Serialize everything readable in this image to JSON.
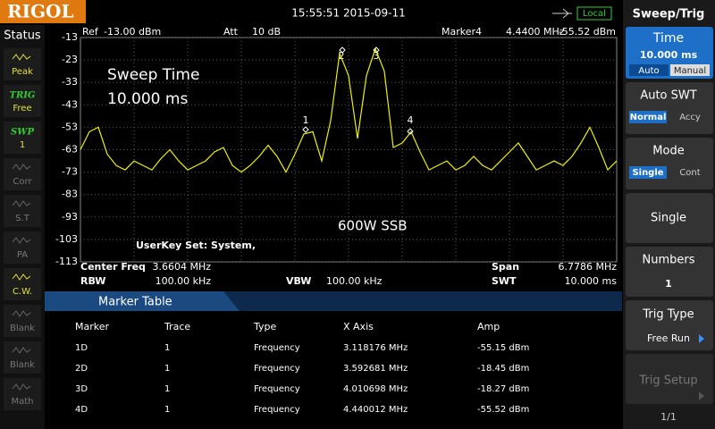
{
  "header": {
    "logo": "RIGOL",
    "datetime": "15:55:51 2015-09-11",
    "mode": "Local"
  },
  "status": {
    "title": "Status",
    "items": [
      [
        "Peak"
      ],
      [
        "TRIG",
        "Free"
      ],
      [
        "SWP",
        "1"
      ],
      [
        "Corr"
      ],
      [
        "S.T"
      ],
      [
        "PA"
      ],
      [
        "C.W."
      ],
      [
        "Blank"
      ],
      [
        "Blank"
      ],
      [
        "Math"
      ]
    ]
  },
  "graticule": {
    "ref_label": "Ref",
    "ref_value": "-13.00 dBm",
    "att_label": "Att",
    "att_value": "10 dB",
    "marker_label": "Marker4",
    "marker_freq": "4.4400 MHz",
    "marker_amp": "-55.52 dBm",
    "yticks": [
      -13,
      -23,
      -33,
      -43,
      -53,
      -63,
      -73,
      -83,
      -93,
      -103,
      -113
    ],
    "annotations": [
      "Sweep Time",
      "10.000 ms",
      "600W SSB",
      "UserKey Set:  System,"
    ],
    "marker_ids": [
      "1",
      "2",
      "3",
      "4"
    ],
    "trace": [
      -63,
      -55,
      -53,
      -65,
      -70,
      -72,
      -68,
      -70,
      -72,
      -67,
      -63,
      -68,
      -72,
      -70,
      -68,
      -64,
      -62,
      -70,
      -73,
      -70,
      -66,
      -61,
      -66,
      -73,
      -65,
      -56,
      -55,
      -68,
      -50,
      -20,
      -30,
      -58,
      -30,
      -18,
      -28,
      -62,
      -60,
      -55,
      -64,
      -72,
      -70,
      -68,
      -72,
      -70,
      -66,
      -70,
      -72,
      -68,
      -64,
      -60,
      -66,
      -72,
      -70,
      -68,
      -70,
      -66,
      -60,
      -53,
      -62,
      -72,
      -68
    ]
  },
  "params": [
    [
      "Center Freq",
      "3.6604 MHz",
      "Span",
      "6.7786 MHz"
    ],
    [
      "RBW",
      "100.00 kHz",
      "VBW",
      "100.00 kHz",
      "SWT",
      "10.000 ms"
    ]
  ],
  "marker_table": {
    "title": "Marker Table",
    "headers": [
      "Marker",
      "Trace",
      "Type",
      "X Axis",
      "Amp"
    ],
    "rows": [
      [
        "1D",
        "1",
        "Frequency",
        "3.118176 MHz",
        "-55.15 dBm"
      ],
      [
        "2D",
        "1",
        "Frequency",
        "3.592681 MHz",
        "-18.45 dBm"
      ],
      [
        "3D",
        "1",
        "Frequency",
        "4.010698 MHz",
        "-18.27 dBm"
      ],
      [
        "4D",
        "1",
        "Frequency",
        "4.440012 MHz",
        "-55.52 dBm"
      ]
    ]
  },
  "menu": {
    "title": "Sweep/Trig",
    "time": {
      "label": "Time",
      "value": "10.000 ms",
      "options": [
        "Auto",
        "Manual"
      ]
    },
    "auto_swt": {
      "label": "Auto SWT",
      "options": [
        "Normal",
        "Accy"
      ]
    },
    "mode": {
      "label": "Mode",
      "options": [
        "Single",
        "Cont"
      ]
    },
    "single": "Single",
    "numbers": {
      "label": "Numbers",
      "value": "1"
    },
    "trig_type": {
      "label": "Trig Type",
      "value": "Free Run"
    },
    "trig_setup": "Trig Setup",
    "page": "1/1"
  }
}
